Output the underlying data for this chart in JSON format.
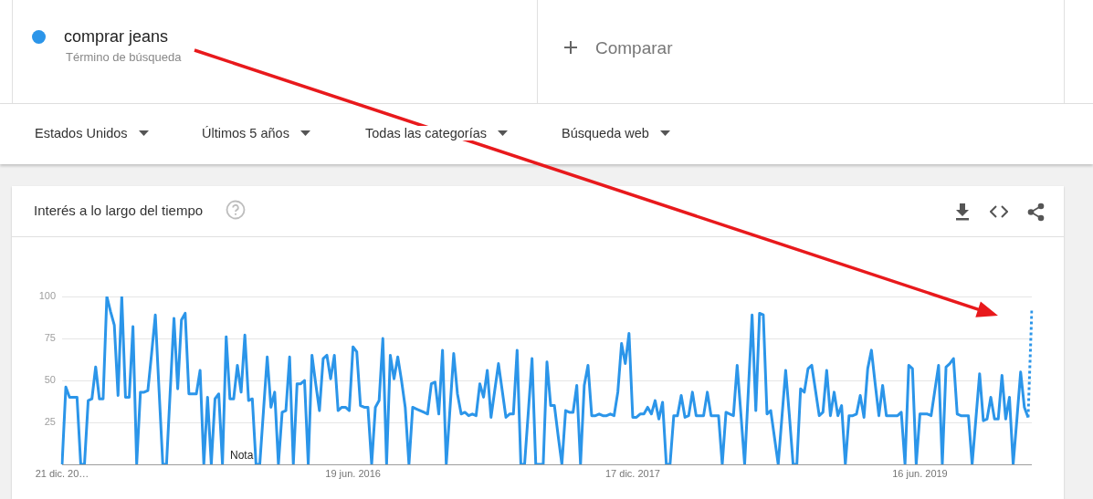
{
  "chart_data": {
    "type": "line",
    "title": "Interés a lo largo del tiempo",
    "annotations": [
      "Término de búsqueda",
      "Comparar",
      "Estados Unidos",
      "Últimos 5 años",
      "Todas las categorías",
      "Búsqueda web",
      "Nota"
    ],
    "categories": [
      "21 dic. 20…",
      null,
      null,
      null,
      null,
      null,
      null,
      null,
      null,
      null,
      null,
      null,
      null,
      null,
      null,
      null,
      null,
      null,
      null,
      null,
      null,
      null,
      null,
      null,
      null,
      null,
      null,
      null,
      null,
      null,
      null,
      null,
      null,
      null,
      null,
      null,
      null,
      null,
      null,
      null,
      null,
      null,
      null,
      null,
      null,
      null,
      null,
      null,
      null,
      null,
      null,
      null,
      null,
      null,
      null,
      null,
      null,
      null,
      null,
      null,
      null,
      null,
      null,
      null,
      null,
      null,
      null,
      null,
      null,
      null,
      null,
      null,
      null,
      null,
      null,
      null,
      null,
      null,
      "19 jun. 2016",
      null,
      null,
      null,
      null,
      null,
      null,
      null,
      null,
      null,
      null,
      null,
      null,
      null,
      null,
      null,
      null,
      null,
      null,
      null,
      null,
      null,
      null,
      null,
      null,
      null,
      null,
      null,
      null,
      null,
      null,
      null,
      null,
      null,
      null,
      null,
      null,
      null,
      null,
      null,
      null,
      null,
      null,
      null,
      null,
      null,
      null,
      null,
      null,
      null,
      null,
      null,
      null,
      null,
      null,
      null,
      null,
      null,
      null,
      null,
      null,
      null,
      null,
      null,
      null,
      null,
      null,
      null,
      null,
      null,
      null,
      null,
      null,
      null,
      null,
      "17 dic. 2017",
      null,
      null,
      null,
      null,
      null,
      null,
      null,
      null,
      null,
      null,
      null,
      null,
      null,
      null,
      null,
      null,
      null,
      null,
      null,
      null,
      null,
      null,
      null,
      null,
      null,
      null,
      null,
      null,
      null,
      null,
      null,
      null,
      null,
      null,
      null,
      null,
      null,
      null,
      null,
      null,
      null,
      null,
      null,
      null,
      null,
      null,
      null,
      null,
      null,
      null,
      null,
      null,
      null,
      null,
      null,
      null,
      null,
      null,
      null,
      null,
      null,
      null,
      null,
      null,
      null,
      null,
      null,
      null,
      null,
      null,
      null,
      null,
      null,
      null,
      null,
      null,
      "16 jun. 2019",
      null,
      null,
      null,
      null,
      null,
      null,
      null,
      null,
      null,
      null,
      null,
      null,
      null,
      null,
      null,
      null,
      null,
      null,
      null,
      null,
      null,
      null,
      null,
      null,
      null,
      null,
      null,
      null,
      null,
      null
    ],
    "series": [
      {
        "name": "comprar jeans",
        "color": "#2b95e9",
        "values": [
          0,
          46,
          40,
          40,
          40,
          0,
          0,
          38,
          39,
          58,
          39,
          39,
          100,
          91,
          83,
          41,
          100,
          40,
          40,
          82,
          0,
          43,
          43,
          44,
          66,
          89,
          44,
          0,
          0,
          44,
          87,
          45,
          86,
          90,
          42,
          42,
          42,
          56,
          0,
          40,
          0,
          39,
          42,
          0,
          76,
          39,
          39,
          59,
          43,
          77,
          38,
          39,
          0,
          0,
          32,
          64,
          34,
          43,
          0,
          31,
          32,
          64,
          0,
          48,
          48,
          50,
          0,
          65,
          48,
          32,
          63,
          65,
          51,
          65,
          32,
          34,
          34,
          32,
          70,
          67,
          35,
          34,
          34,
          0,
          34,
          38,
          75,
          0,
          65,
          51,
          64,
          50,
          34,
          0,
          34,
          33,
          32,
          31,
          30,
          48,
          49,
          30,
          68,
          0,
          33,
          66,
          42,
          30,
          31,
          29,
          30,
          29,
          48,
          40,
          56,
          28,
          44,
          60,
          44,
          28,
          30,
          30,
          68,
          0,
          0,
          31,
          63,
          0,
          0,
          0,
          61,
          35,
          35,
          17,
          0,
          32,
          31,
          31,
          47,
          0,
          47,
          59,
          29,
          29,
          30,
          29,
          29,
          30,
          29,
          43,
          72,
          60,
          78,
          28,
          28,
          30,
          30,
          34,
          30,
          38,
          27,
          37,
          0,
          0,
          29,
          29,
          41,
          28,
          29,
          43,
          29,
          29,
          29,
          43,
          29,
          29,
          29,
          0,
          31,
          30,
          29,
          59,
          30,
          0,
          44,
          89,
          32,
          90,
          89,
          30,
          32,
          16,
          0,
          28,
          56,
          29,
          0,
          0,
          45,
          43,
          57,
          59,
          44,
          29,
          31,
          56,
          29,
          43,
          29,
          35,
          0,
          29,
          29,
          30,
          41,
          28,
          57,
          68,
          48,
          29,
          47,
          29,
          29,
          29,
          29,
          31,
          0,
          59,
          57,
          0,
          30,
          30,
          30,
          29,
          44,
          59,
          0,
          58,
          60,
          63,
          30,
          29,
          29,
          29,
          0,
          27,
          54,
          26,
          27,
          40,
          27,
          27,
          53,
          27,
          40,
          0,
          27,
          55,
          34,
          28,
          null
        ]
      },
      {
        "color": "#2b95e9",
        "line_style": "dotted",
        "values": [
          null,
          null,
          null,
          null,
          null,
          null,
          null,
          null,
          null,
          null,
          null,
          null,
          null,
          null,
          null,
          null,
          null,
          null,
          null,
          null,
          null,
          null,
          null,
          null,
          null,
          null,
          null,
          null,
          null,
          null,
          null,
          null,
          null,
          null,
          null,
          null,
          null,
          null,
          null,
          null,
          null,
          null,
          null,
          null,
          null,
          null,
          null,
          null,
          null,
          null,
          null,
          null,
          null,
          null,
          null,
          null,
          null,
          null,
          null,
          null,
          null,
          null,
          null,
          null,
          null,
          null,
          null,
          null,
          null,
          null,
          null,
          null,
          null,
          null,
          null,
          null,
          null,
          null,
          null,
          null,
          null,
          null,
          null,
          null,
          null,
          null,
          null,
          null,
          null,
          null,
          null,
          null,
          null,
          null,
          null,
          null,
          null,
          null,
          null,
          null,
          null,
          null,
          null,
          null,
          null,
          null,
          null,
          null,
          null,
          null,
          null,
          null,
          null,
          null,
          null,
          null,
          null,
          null,
          null,
          null,
          null,
          null,
          null,
          null,
          null,
          null,
          null,
          null,
          null,
          null,
          null,
          null,
          null,
          null,
          null,
          null,
          null,
          null,
          null,
          null,
          null,
          null,
          null,
          null,
          null,
          null,
          null,
          null,
          null,
          null,
          null,
          null,
          null,
          null,
          null,
          null,
          null,
          null,
          null,
          null,
          null,
          null,
          null,
          null,
          null,
          null,
          null,
          null,
          null,
          null,
          null,
          null,
          null,
          null,
          null,
          null,
          null,
          null,
          null,
          null,
          null,
          null,
          null,
          null,
          null,
          null,
          null,
          null,
          null,
          null,
          null,
          null,
          null,
          null,
          null,
          null,
          null,
          null,
          null,
          null,
          null,
          null,
          null,
          null,
          null,
          null,
          null,
          null,
          null,
          null,
          null,
          null,
          null,
          null,
          null,
          null,
          null,
          null,
          null,
          null,
          null,
          null,
          null,
          null,
          null,
          null,
          null,
          null,
          null,
          null,
          null,
          null,
          null,
          null,
          null,
          null,
          null,
          null,
          null,
          null,
          null,
          null,
          null,
          null,
          null,
          null,
          null,
          null,
          null,
          null,
          null,
          null,
          null,
          null,
          null,
          null,
          null,
          null,
          null,
          28,
          92
        ]
      }
    ],
    "ylim": [
      0,
      100
    ],
    "yticks": [
      {
        "value": 0,
        "label": null
      },
      25,
      50,
      75,
      100
    ],
    "grid": "y",
    "legend": "top left",
    "marker": "none",
    "line_style": "solid"
  }
}
